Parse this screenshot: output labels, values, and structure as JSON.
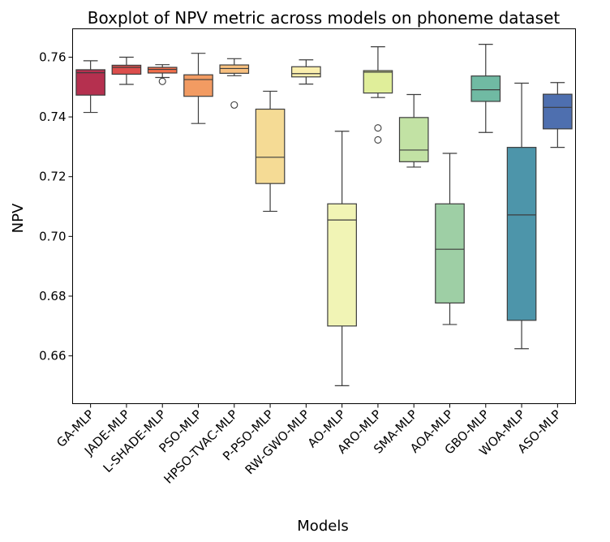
{
  "chart_data": {
    "type": "boxplot",
    "title": "Boxplot of NPV metric across models on phoneme dataset",
    "xlabel": "Models",
    "ylabel": "NPV",
    "ylim": [
      0.644,
      0.7695
    ],
    "yticks": [
      "0.66",
      "0.68",
      "0.70",
      "0.72",
      "0.74",
      "0.76"
    ],
    "grid": false,
    "series": [
      {
        "category": "GA-MLP",
        "color": "#b5304f",
        "whisker_low": 0.7415,
        "q1": 0.7473,
        "median": 0.7548,
        "q3": 0.7558,
        "whisker_high": 0.7588,
        "outliers": []
      },
      {
        "category": "JADE-MLP",
        "color": "#dc4e4c",
        "whisker_low": 0.7509,
        "q1": 0.7543,
        "median": 0.7566,
        "q3": 0.7573,
        "whisker_high": 0.76,
        "outliers": []
      },
      {
        "category": "L-SHADE-MLP",
        "color": "#f26f4c",
        "whisker_low": 0.7532,
        "q1": 0.7547,
        "median": 0.7559,
        "q3": 0.7566,
        "whisker_high": 0.7575,
        "outliers": [
          0.7519
        ]
      },
      {
        "category": "PSO-MLP",
        "color": "#f29b62",
        "whisker_low": 0.7378,
        "q1": 0.7469,
        "median": 0.7525,
        "q3": 0.7541,
        "whisker_high": 0.7613,
        "outliers": []
      },
      {
        "category": "HPSO-TVAC-MLP",
        "color": "#f8c07f",
        "whisker_low": 0.7538,
        "q1": 0.7546,
        "median": 0.7562,
        "q3": 0.7574,
        "whisker_high": 0.7595,
        "outliers": [
          0.744
        ]
      },
      {
        "category": "P-PSO-MLP",
        "color": "#f5db95",
        "whisker_low": 0.7084,
        "q1": 0.7177,
        "median": 0.7265,
        "q3": 0.7426,
        "whisker_high": 0.7486,
        "outliers": []
      },
      {
        "category": "RW-GWO-MLP",
        "color": "#fbefae",
        "whisker_low": 0.751,
        "q1": 0.7534,
        "median": 0.7545,
        "q3": 0.7568,
        "whisker_high": 0.7591,
        "outliers": []
      },
      {
        "category": "AO-MLP",
        "color": "#f1f4b5",
        "whisker_low": 0.65,
        "q1": 0.67,
        "median": 0.7055,
        "q3": 0.7109,
        "whisker_high": 0.7352,
        "outliers": []
      },
      {
        "category": "ARO-MLP",
        "color": "#e0ee9a",
        "whisker_low": 0.7465,
        "q1": 0.748,
        "median": 0.755,
        "q3": 0.7555,
        "whisker_high": 0.7635,
        "outliers": [
          0.7363,
          0.7323
        ]
      },
      {
        "category": "SMA-MLP",
        "color": "#c2e2a4",
        "whisker_low": 0.7232,
        "q1": 0.725,
        "median": 0.7289,
        "q3": 0.7398,
        "whisker_high": 0.7475,
        "outliers": []
      },
      {
        "category": "AOA-MLP",
        "color": "#9ecfa5",
        "whisker_low": 0.6705,
        "q1": 0.6777,
        "median": 0.6957,
        "q3": 0.7109,
        "whisker_high": 0.7278,
        "outliers": []
      },
      {
        "category": "GBO-MLP",
        "color": "#70baa3",
        "whisker_low": 0.7348,
        "q1": 0.7452,
        "median": 0.7491,
        "q3": 0.7537,
        "whisker_high": 0.7643,
        "outliers": []
      },
      {
        "category": "WOA-MLP",
        "color": "#4d95aa",
        "whisker_low": 0.6624,
        "q1": 0.6719,
        "median": 0.7072,
        "q3": 0.7298,
        "whisker_high": 0.7513,
        "outliers": []
      },
      {
        "category": "ASO-MLP",
        "color": "#4e6faf",
        "whisker_low": 0.7298,
        "q1": 0.736,
        "median": 0.7432,
        "q3": 0.7476,
        "whisker_high": 0.7515,
        "outliers": []
      }
    ]
  }
}
